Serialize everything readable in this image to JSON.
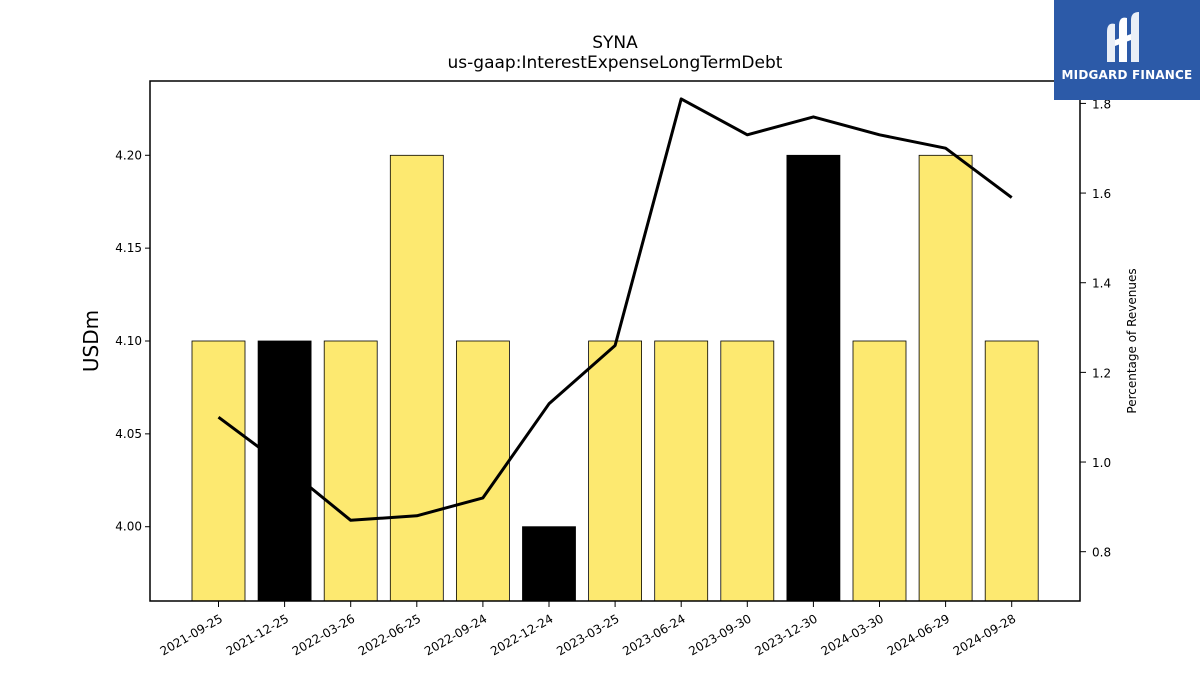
{
  "logo": {
    "text": "MIDGARD FINANCE",
    "background": "#2c5aa8"
  },
  "chart_data": {
    "type": "bar",
    "title": "SYNA",
    "subtitle": "us-gaap:InterestExpenseLongTermDebt",
    "ylabel": "USDm",
    "y2label": "Percentage of Revenues",
    "categories": [
      "2021-09-25",
      "2021-12-25",
      "2022-03-26",
      "2022-06-25",
      "2022-09-24",
      "2022-12-24",
      "2023-03-25",
      "2023-06-24",
      "2023-09-30",
      "2023-12-30",
      "2024-03-30",
      "2024-06-29",
      "2024-09-28"
    ],
    "series": [
      {
        "type": "bar",
        "values": [
          4.1,
          4.1,
          4.1,
          4.2,
          4.1,
          4.0,
          4.1,
          4.1,
          4.1,
          4.2,
          4.1,
          4.2,
          4.1
        ],
        "colors": [
          "#fde970",
          "#000000",
          "#fde970",
          "#fde970",
          "#fde970",
          "#000000",
          "#fde970",
          "#fde970",
          "#fde970",
          "#000000",
          "#fde970",
          "#fde970",
          "#fde970"
        ]
      },
      {
        "type": "line",
        "axis": "right",
        "color": "#000000",
        "values": [
          1.1,
          0.99,
          0.87,
          0.88,
          0.92,
          1.13,
          1.26,
          1.81,
          1.73,
          1.77,
          1.73,
          1.7,
          1.59
        ]
      }
    ],
    "ylim": [
      3.96,
      4.24
    ],
    "yticks": [
      4.0,
      4.05,
      4.1,
      4.15,
      4.2
    ],
    "ytick_labels": [
      "4.00",
      "4.05",
      "4.10",
      "4.15",
      "4.20"
    ],
    "y2lim": [
      0.69,
      1.85
    ],
    "y2ticks": [
      0.8,
      1.0,
      1.2,
      1.4,
      1.6,
      1.8
    ],
    "y2tick_labels": [
      "0.8",
      "1.0",
      "1.2",
      "1.4",
      "1.6",
      "1.8"
    ],
    "grid": false,
    "bar_edge_color": "#000000"
  }
}
